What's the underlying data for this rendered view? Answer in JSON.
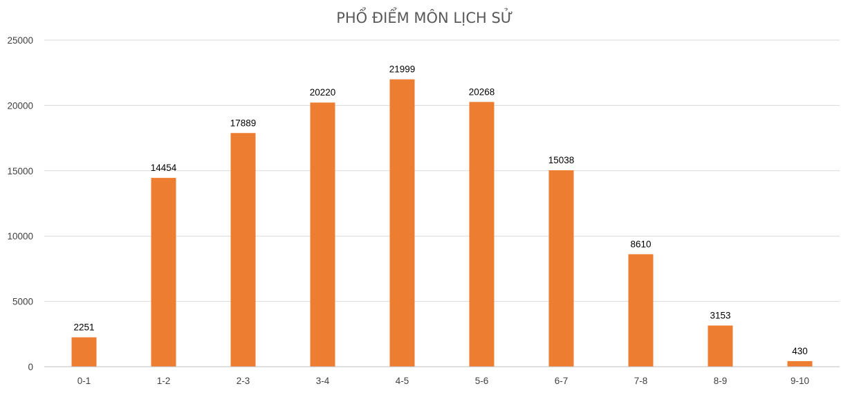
{
  "chart_data": {
    "type": "bar",
    "title": "PHỔ ĐIỂM MÔN LỊCH SỬ",
    "xlabel": "",
    "ylabel": "",
    "categories": [
      "0-1",
      "1-2",
      "2-3",
      "3-4",
      "4-5",
      "5-6",
      "6-7",
      "7-8",
      "8-9",
      "9-10"
    ],
    "values": [
      2251,
      14454,
      17889,
      20220,
      21999,
      20268,
      15038,
      8610,
      3153,
      430
    ],
    "ylim": [
      0,
      25000
    ],
    "yticks": [
      0,
      5000,
      10000,
      15000,
      20000,
      25000
    ],
    "ytick_labels": [
      "0",
      "5000",
      "10000",
      "15000",
      "20000",
      "25000"
    ],
    "grid": true,
    "data_labels": true,
    "legend": "none",
    "colors": {
      "bar": "#ED7D31",
      "grid": "#D9D9D9",
      "title": "#595959",
      "axis": "#BFBFBF"
    }
  }
}
